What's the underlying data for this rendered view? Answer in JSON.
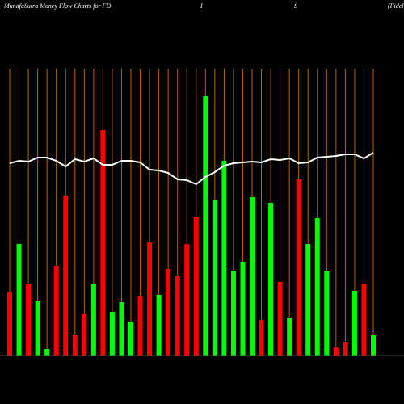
{
  "chart_data": {
    "type": "bar",
    "titles": [
      "MunafaSutra  Money Flow  Charts for FD",
      "I",
      "S",
      "(Fidel"
    ],
    "categories": [
      null,
      null,
      null,
      null,
      null,
      null,
      null,
      null,
      null,
      null,
      null,
      null,
      null,
      null,
      null,
      null,
      null,
      null,
      null,
      null,
      null,
      null,
      null,
      null,
      null,
      null,
      null,
      null,
      null,
      null,
      null,
      null,
      null,
      null,
      null,
      null,
      null,
      null,
      null,
      null
    ],
    "values": [
      79,
      138,
      89,
      68,
      8,
      111,
      198,
      26,
      52,
      88,
      279,
      54,
      66,
      42,
      74,
      140,
      75,
      107,
      99,
      138,
      171,
      321,
      193,
      241,
      104,
      116,
      196,
      44,
      189,
      91,
      47,
      218,
      138,
      170,
      104,
      10,
      17,
      80,
      89,
      25
    ],
    "colors": [
      "#ff0000",
      "#00ff00",
      "#ff0000",
      "#00ff00",
      "#00ff00",
      "#ff0000",
      "#ff0000",
      "#ff0000",
      "#ff0000",
      "#00ff00",
      "#ff0000",
      "#00ff00",
      "#00ff00",
      "#00ff00",
      "#ff0000",
      "#ff0000",
      "#00ff00",
      "#ff0000",
      "#ff0000",
      "#ff0000",
      "#ff0000",
      "#00ff00",
      "#00ff00",
      "#00ff00",
      "#00ff00",
      "#00ff00",
      "#00ff00",
      "#ff0000",
      "#00ff00",
      "#ff0000",
      "#00ff00",
      "#ff0000",
      "#00ff00",
      "#00ff00",
      "#00ff00",
      "#ff0000",
      "#ff0000",
      "#00ff00",
      "#ff0000",
      "#00ff00"
    ],
    "line": {
      "color": "#ffffff",
      "values": [
        238,
        241,
        240,
        245,
        245,
        241,
        234,
        243,
        240,
        244,
        236,
        236,
        241,
        241,
        239,
        230,
        229,
        226,
        218,
        217,
        212,
        221,
        227,
        235,
        238,
        239,
        240,
        239,
        243,
        242,
        244,
        238,
        239,
        245,
        246,
        247,
        249,
        249,
        244,
        251
      ]
    },
    "ylim": [
      0,
      340
    ],
    "grid_color": "#b8650a"
  }
}
